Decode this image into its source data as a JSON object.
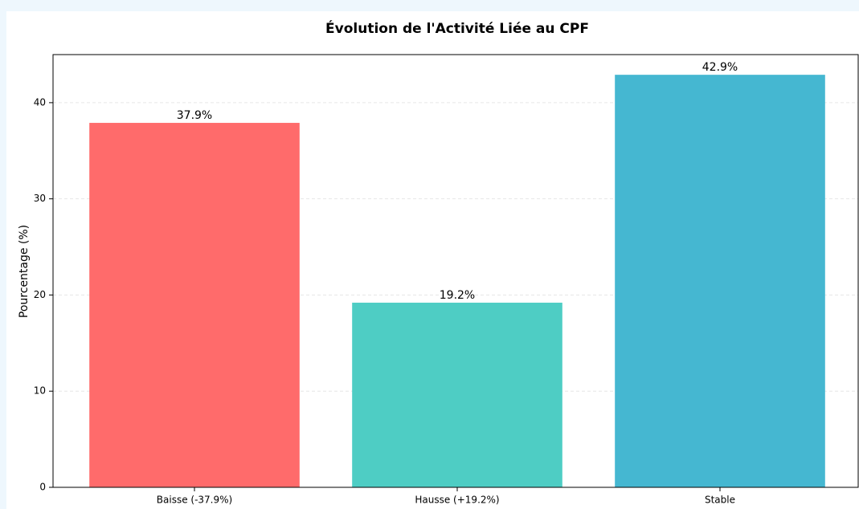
{
  "chart_data": {
    "type": "bar",
    "title": "Évolution de l'Activité Liée au CPF",
    "ylabel": "Pourcentage (%)",
    "categories": [
      "Baisse (-37.9%)",
      "Hausse (+19.2%)",
      "Stable"
    ],
    "values": [
      37.9,
      19.2,
      42.9
    ],
    "value_labels": [
      "37.9%",
      "19.2%",
      "42.9%"
    ],
    "colors": [
      "#ff6b6b",
      "#4ecdc4",
      "#45b7d1"
    ],
    "ylim": [
      0,
      45
    ],
    "yticks": [
      0,
      10,
      20,
      30,
      40
    ],
    "grid": true
  }
}
